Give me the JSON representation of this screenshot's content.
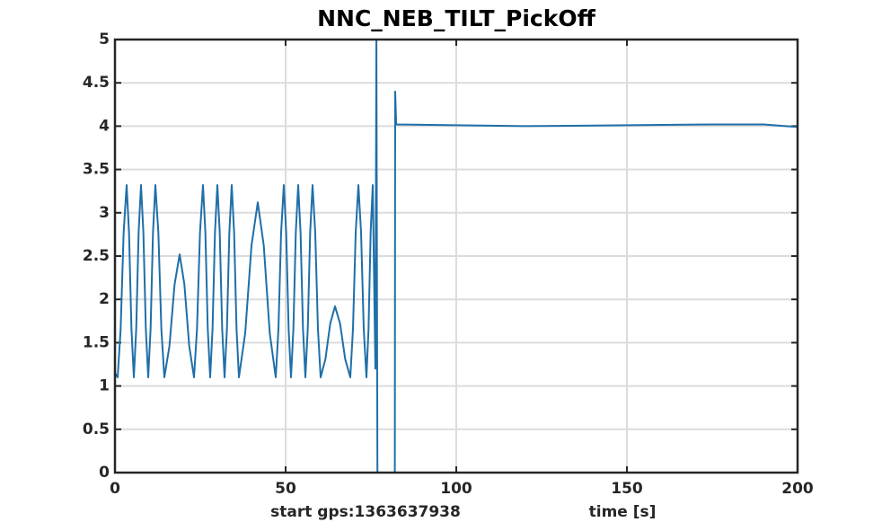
{
  "chart_data": {
    "type": "line",
    "title": "NNC_NEB_TILT_PickOff",
    "xlabel": "time [s]",
    "annotation": "start gps:1363637938",
    "xlim": [
      0,
      200
    ],
    "xticks": [
      0,
      50,
      100,
      150,
      200
    ],
    "ylim": [
      0,
      5
    ],
    "yticks": [
      0,
      0.5,
      1,
      1.5,
      2,
      2.5,
      3,
      3.5,
      4,
      4.5,
      5
    ],
    "grid": true,
    "series": [
      {
        "color": "#1f6fa8",
        "x": [
          0,
          0.79,
          1.67,
          2.54,
          3.42,
          4.12,
          4.83,
          5.53,
          6.23,
          6.93,
          7.63,
          8.33,
          9.04,
          9.74,
          10.44,
          11.14,
          11.84,
          12.72,
          13.59,
          14.47,
          15.96,
          17.46,
          18.95,
          20.35,
          21.76,
          23.16,
          24.04,
          24.91,
          25.79,
          26.49,
          27.19,
          27.89,
          28.59,
          29.3,
          30.0,
          30.7,
          31.41,
          32.11,
          32.81,
          33.51,
          34.21,
          34.91,
          35.62,
          36.32,
          38.16,
          40.0,
          41.84,
          43.6,
          45.35,
          47.11,
          47.9,
          48.68,
          49.47,
          50.17,
          50.88,
          51.58,
          52.28,
          52.98,
          53.68,
          54.38,
          55.09,
          55.79,
          56.49,
          57.19,
          57.89,
          58.68,
          59.47,
          60.26,
          61.66,
          63.07,
          64.47,
          65.96,
          67.46,
          68.95,
          69.74,
          70.53,
          71.32,
          72.11,
          72.89,
          73.68,
          74.3,
          74.91,
          75.53,
          76.3,
          76.6,
          76.9,
          82.0,
          82.1,
          82.4,
          100,
          120,
          150,
          175,
          190,
          200
        ],
        "values": [
          1.15,
          1.1,
          1.66,
          2.77,
          3.32,
          2.77,
          1.66,
          1.1,
          1.66,
          2.77,
          3.32,
          2.77,
          1.66,
          1.1,
          1.66,
          2.77,
          3.32,
          2.77,
          1.66,
          1.1,
          1.46,
          2.17,
          2.52,
          2.17,
          1.46,
          1.1,
          1.66,
          2.77,
          3.32,
          2.77,
          1.66,
          1.1,
          1.66,
          2.77,
          3.32,
          2.77,
          1.66,
          1.1,
          1.66,
          2.77,
          3.32,
          2.77,
          1.66,
          1.1,
          1.61,
          2.62,
          3.12,
          2.62,
          1.61,
          1.1,
          1.66,
          2.77,
          3.32,
          2.77,
          1.66,
          1.1,
          1.66,
          2.77,
          3.32,
          2.77,
          1.66,
          1.1,
          1.66,
          2.77,
          3.32,
          2.77,
          1.66,
          1.1,
          1.31,
          1.72,
          1.92,
          1.72,
          1.31,
          1.1,
          1.66,
          2.77,
          3.32,
          2.77,
          1.66,
          1.1,
          1.66,
          2.77,
          3.32,
          1.2,
          5,
          0,
          0,
          4.4,
          4.02,
          4.01,
          4.0,
          4.01,
          4.02,
          4.02,
          3.99
        ]
      }
    ]
  }
}
